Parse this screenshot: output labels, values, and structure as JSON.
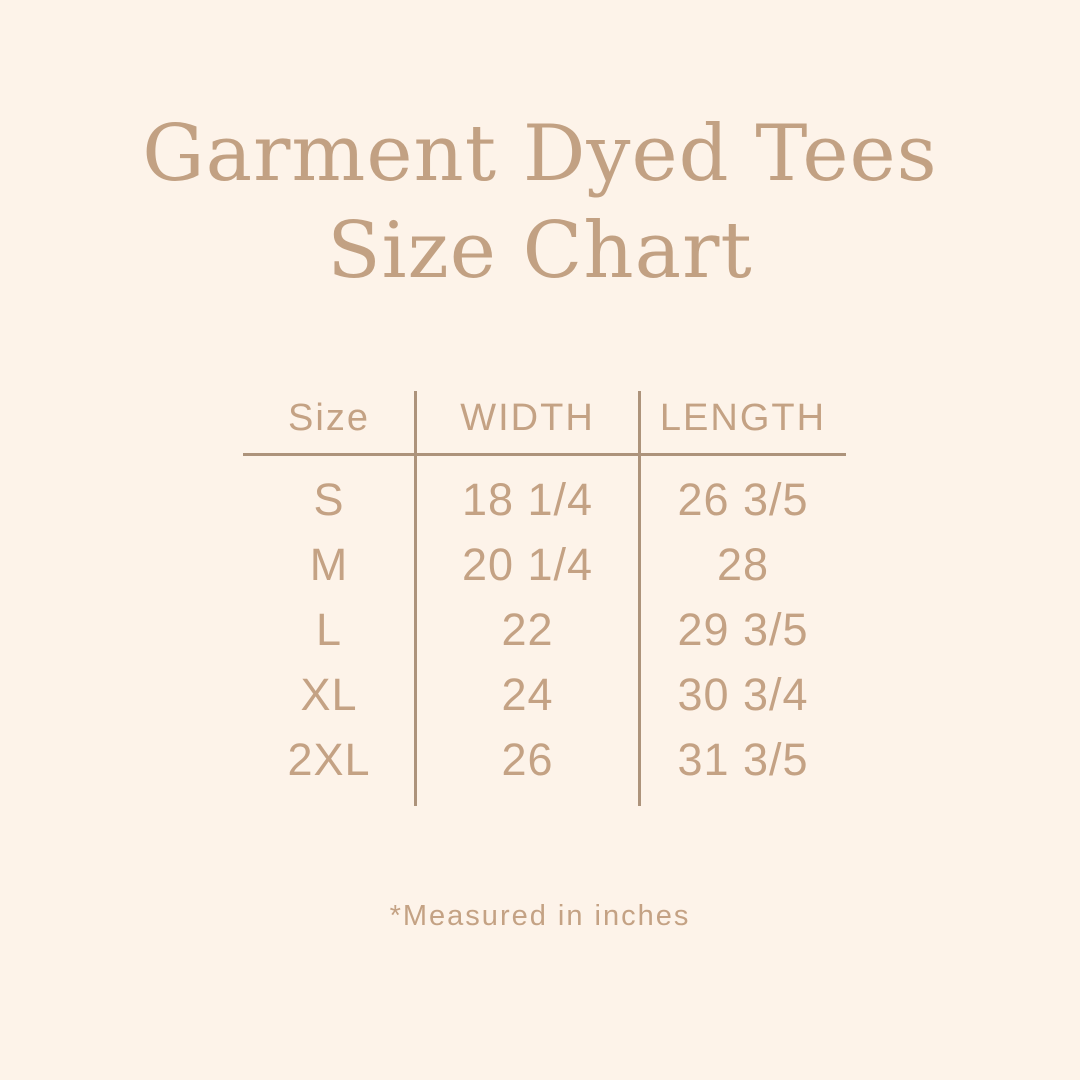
{
  "page": {
    "background_color": "#fdf3e9",
    "title_color": "#c2a183",
    "text_color": "#c4a284",
    "line_color": "#ad937b"
  },
  "title": {
    "line1": "Garment Dyed Tees",
    "line2": "Size Chart"
  },
  "table": {
    "columns": [
      "Size",
      "WIDTH",
      "LENGTH"
    ],
    "rows": [
      {
        "size": "S",
        "width": "18 1/4",
        "length": "26 3/5"
      },
      {
        "size": "M",
        "width": "20 1/4",
        "length": "28"
      },
      {
        "size": "L",
        "width": "22",
        "length": "29 3/5"
      },
      {
        "size": "XL",
        "width": "24",
        "length": "30 3/4"
      },
      {
        "size": "2XL",
        "width": "26",
        "length": "31 3/5"
      }
    ],
    "units_note": "*Measured in inches"
  }
}
